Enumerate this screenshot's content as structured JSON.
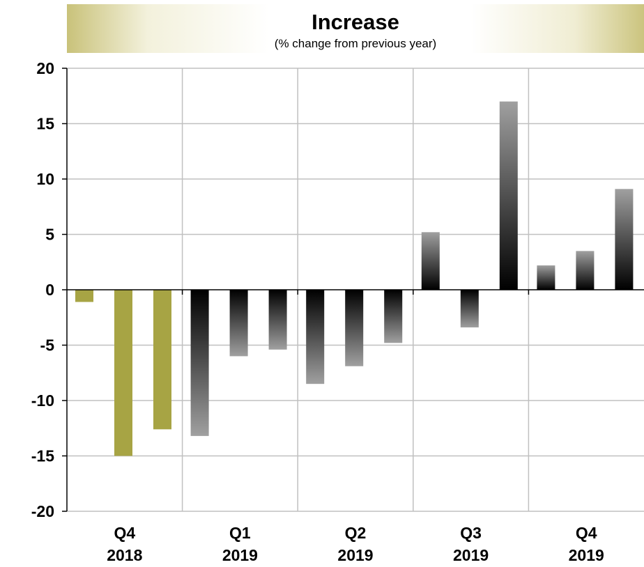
{
  "chart_data": {
    "type": "bar",
    "title": "Increase",
    "subtitle": "(% change from previous year)",
    "ylim": [
      -20,
      20
    ],
    "yticks": [
      "20",
      "15",
      "10",
      "5",
      "0",
      "-5",
      "-10",
      "-15",
      "-20"
    ],
    "grid": true,
    "groups": [
      {
        "period": "Q4",
        "year": "2018",
        "values": [
          -1.1,
          -15.0,
          -12.6
        ]
      },
      {
        "period": "Q1",
        "year": "2019",
        "values": [
          -13.2,
          -6.0,
          -5.4
        ]
      },
      {
        "period": "Q2",
        "year": "2019",
        "values": [
          -8.5,
          -6.9,
          -4.8
        ]
      },
      {
        "period": "Q3",
        "year": "2019",
        "values": [
          5.2,
          -3.4,
          17.0
        ]
      },
      {
        "period": "Q4",
        "year": "2019",
        "values": [
          2.2,
          3.5,
          9.1
        ]
      }
    ],
    "colors": {
      "highlight": "#a7a444",
      "dark": "#000000",
      "light": "#a0a0a0",
      "grid": "#c0c0c0"
    }
  }
}
